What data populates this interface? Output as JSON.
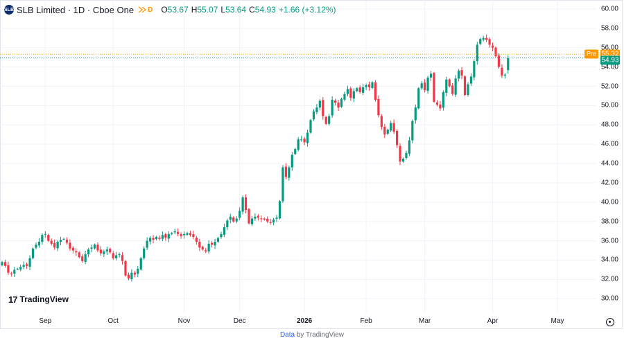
{
  "legend": {
    "symbol_logo": "SLB",
    "symbol": "SLB Limited · 1D · Cboe One",
    "flag_icon": "flag-icon",
    "badge": "D",
    "o_label": "O",
    "o_value": "53.67",
    "h_label": "H",
    "h_value": "55.07",
    "l_label": "L",
    "l_value": "53.64",
    "c_label": "C",
    "c_value": "54.93",
    "change": "+1.66 (+3.12%)"
  },
  "price_tags": {
    "pre_label": "Pre",
    "pre_value": "55.32",
    "last_value": "54.93"
  },
  "logo_text": "TradingView",
  "footer": {
    "data": "Data",
    "by": "by TradingView"
  },
  "colors": {
    "up": "#089981",
    "down": "#f23645",
    "pre": "#ff9800",
    "grid": "#f0f3fa"
  },
  "chart_data": {
    "type": "candlestick",
    "y_ticks": [
      "60.00",
      "58.00",
      "56.00",
      "54.00",
      "52.00",
      "50.00",
      "48.00",
      "46.00",
      "44.00",
      "42.00",
      "40.00",
      "38.00",
      "36.00",
      "34.00",
      "32.00",
      "30.00"
    ],
    "ylim": [
      29.3,
      60.5
    ],
    "x_ticks": [
      {
        "label": "Sep",
        "i": 14,
        "bold": false
      },
      {
        "label": "Oct",
        "i": 36,
        "bold": false
      },
      {
        "label": "Nov",
        "i": 59,
        "bold": false
      },
      {
        "label": "Dec",
        "i": 77,
        "bold": false
      },
      {
        "label": "2026",
        "i": 98,
        "bold": true
      },
      {
        "label": "Feb",
        "i": 118,
        "bold": false
      },
      {
        "label": "Mar",
        "i": 137,
        "bold": false
      },
      {
        "label": "Apr",
        "i": 159,
        "bold": false
      },
      {
        "label": "May",
        "i": 180,
        "bold": false
      }
    ],
    "pre_market_price": 55.32,
    "last_price": 54.93,
    "closes": [
      33.8,
      33.4,
      32.7,
      32.6,
      33.0,
      33.1,
      33.3,
      33.5,
      33.4,
      34.2,
      35.2,
      35.6,
      35.9,
      36.6,
      36.7,
      36.0,
      35.7,
      35.3,
      35.9,
      36.1,
      36.2,
      35.8,
      35.2,
      35.0,
      34.8,
      34.3,
      33.9,
      34.6,
      35.1,
      35.3,
      35.6,
      35.0,
      34.7,
      34.9,
      35.1,
      34.8,
      34.2,
      34.5,
      34.6,
      33.9,
      32.4,
      32.1,
      32.7,
      32.5,
      33.1,
      34.2,
      35.2,
      36.0,
      36.3,
      36.1,
      36.4,
      36.2,
      36.6,
      36.3,
      36.7,
      36.8,
      37.0,
      36.7,
      36.5,
      36.7,
      36.8,
      36.6,
      36.4,
      35.9,
      35.3,
      35.1,
      34.9,
      35.7,
      35.6,
      35.9,
      36.3,
      36.7,
      37.4,
      38.1,
      38.5,
      38.0,
      38.3,
      39.1,
      40.5,
      39.2,
      37.8,
      38.3,
      38.5,
      38.4,
      38.3,
      38.2,
      38.0,
      37.9,
      38.2,
      38.4,
      40.1,
      43.6,
      42.6,
      43.6,
      44.9,
      45.5,
      46.5,
      46.5,
      46.2,
      47.2,
      48.5,
      49.4,
      49.8,
      50.5,
      48.9,
      48.1,
      48.9,
      50.6,
      50.3,
      49.8,
      50.7,
      51.2,
      51.7,
      50.8,
      51.5,
      51.8,
      51.4,
      51.9,
      52.1,
      51.9,
      52.4,
      50.6,
      49.0,
      47.8,
      47.0,
      47.5,
      48.2,
      47.3,
      45.9,
      44.2,
      44.5,
      45.1,
      46.4,
      48.4,
      49.8,
      51.8,
      52.3,
      51.6,
      52.9,
      53.3,
      50.4,
      50.1,
      49.7,
      51.4,
      52.7,
      52.0,
      51.2,
      52.8,
      53.6,
      53.1,
      51.1,
      52.2,
      53.0,
      54.6,
      56.3,
      56.9,
      57.0,
      56.8,
      56.3,
      56.0,
      55.1,
      54.0,
      53.1,
      53.2,
      54.9
    ]
  }
}
